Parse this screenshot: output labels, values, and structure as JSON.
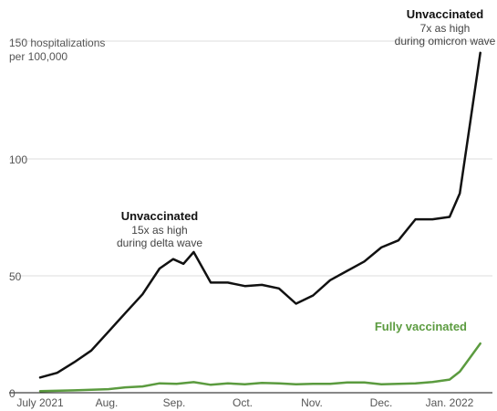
{
  "chart_data": {
    "type": "line",
    "ylabel": [
      "150 hospitalizations",
      "per 100,000"
    ],
    "ylim": [
      0,
      165
    ],
    "yticks": [
      {
        "value": 0,
        "label": "0"
      },
      {
        "value": 50,
        "label": "50"
      },
      {
        "value": 100,
        "label": "100"
      },
      {
        "value": 150,
        "label": ""
      }
    ],
    "xticks": [
      {
        "x": 0,
        "label": "July 2021"
      },
      {
        "x": 1,
        "label": "Aug."
      },
      {
        "x": 2,
        "label": "Sep."
      },
      {
        "x": 3,
        "label": "Oct."
      },
      {
        "x": 4,
        "label": "Nov."
      },
      {
        "x": 5,
        "label": "Dec."
      },
      {
        "x": 6,
        "label": "Jan. 2022"
      }
    ],
    "series": [
      {
        "name": "Unvaccinated",
        "color": "#111111",
        "x": [
          0,
          0.25,
          0.5,
          0.75,
          1.0,
          1.25,
          1.5,
          1.75,
          1.95,
          2.1,
          2.25,
          2.5,
          2.75,
          3.0,
          3.25,
          3.5,
          3.75,
          4.0,
          4.25,
          4.5,
          4.75,
          5.0,
          5.25,
          5.5,
          5.75,
          6.0,
          6.15,
          6.3,
          6.45
        ],
        "values": [
          6.5,
          8.5,
          13,
          18,
          26,
          34,
          42,
          53,
          57,
          55,
          60,
          47,
          47,
          45.5,
          46,
          44.5,
          38,
          41.5,
          48,
          52,
          56,
          62,
          65,
          74,
          74,
          75,
          85,
          115,
          145
        ]
      },
      {
        "name": "Fully vaccinated",
        "color": "#5b9b3f",
        "x": [
          0,
          0.5,
          1.0,
          1.25,
          1.5,
          1.75,
          2.0,
          2.25,
          2.5,
          2.75,
          3.0,
          3.25,
          3.5,
          3.75,
          4.0,
          4.25,
          4.5,
          4.75,
          5.0,
          5.25,
          5.5,
          5.75,
          6.0,
          6.15,
          6.3,
          6.45
        ],
        "values": [
          0.7,
          1.0,
          1.5,
          2.3,
          2.7,
          4.0,
          3.8,
          4.5,
          3.4,
          4.0,
          3.6,
          4.2,
          4.0,
          3.6,
          3.8,
          3.8,
          4.4,
          4.4,
          3.6,
          3.8,
          4.0,
          4.6,
          5.6,
          9,
          15,
          21
        ]
      }
    ],
    "annotations": [
      {
        "series": "Unvaccinated",
        "title": "Unvaccinated",
        "lines": [
          "15x as high",
          "during delta wave"
        ]
      },
      {
        "series": "Unvaccinated",
        "title": "Unvaccinated",
        "lines": [
          "7x as high",
          "during omicron wave"
        ]
      },
      {
        "series": "Fully vaccinated",
        "title": "Fully vaccinated",
        "lines": []
      }
    ],
    "grid": true
  }
}
